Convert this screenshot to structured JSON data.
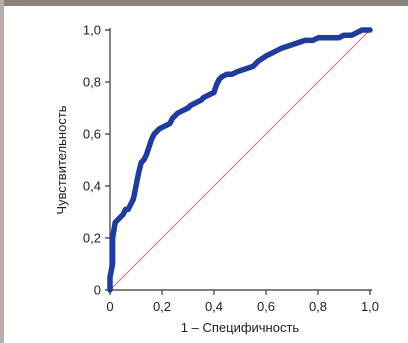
{
  "chart_data": {
    "type": "line",
    "title": "",
    "xlabel": "1 – Специфичность",
    "ylabel": "Чувствительность",
    "xlim": [
      0,
      1
    ],
    "ylim": [
      0,
      1
    ],
    "x_ticks": [
      0,
      0.2,
      0.4,
      0.6,
      0.8,
      1.0
    ],
    "x_tick_labels": [
      "0",
      "0,2",
      "0,4",
      "0,6",
      "0,8",
      "1,0"
    ],
    "y_ticks": [
      0,
      0.2,
      0.4,
      0.6,
      0.8,
      1.0
    ],
    "y_tick_labels": [
      "0",
      "0,2",
      "0,4",
      "0,6",
      "0,8",
      "1,0"
    ],
    "grid": false,
    "series": [
      {
        "style": "thick-blue",
        "color": "#1f3c9c",
        "points": [
          [
            0.0,
            0.0
          ],
          [
            0.0,
            0.05
          ],
          [
            0.01,
            0.1
          ],
          [
            0.01,
            0.2
          ],
          [
            0.02,
            0.26
          ],
          [
            0.03,
            0.27
          ],
          [
            0.04,
            0.28
          ],
          [
            0.05,
            0.29
          ],
          [
            0.06,
            0.31
          ],
          [
            0.07,
            0.31
          ],
          [
            0.08,
            0.33
          ],
          [
            0.09,
            0.35
          ],
          [
            0.1,
            0.4
          ],
          [
            0.11,
            0.45
          ],
          [
            0.12,
            0.49
          ],
          [
            0.13,
            0.5
          ],
          [
            0.14,
            0.52
          ],
          [
            0.15,
            0.55
          ],
          [
            0.16,
            0.58
          ],
          [
            0.17,
            0.6
          ],
          [
            0.18,
            0.61
          ],
          [
            0.19,
            0.62
          ],
          [
            0.21,
            0.63
          ],
          [
            0.23,
            0.64
          ],
          [
            0.24,
            0.66
          ],
          [
            0.26,
            0.68
          ],
          [
            0.28,
            0.69
          ],
          [
            0.3,
            0.7
          ],
          [
            0.31,
            0.71
          ],
          [
            0.33,
            0.72
          ],
          [
            0.35,
            0.73
          ],
          [
            0.36,
            0.74
          ],
          [
            0.38,
            0.75
          ],
          [
            0.4,
            0.76
          ],
          [
            0.41,
            0.79
          ],
          [
            0.42,
            0.81
          ],
          [
            0.43,
            0.82
          ],
          [
            0.45,
            0.83
          ],
          [
            0.47,
            0.83
          ],
          [
            0.49,
            0.84
          ],
          [
            0.52,
            0.85
          ],
          [
            0.55,
            0.86
          ],
          [
            0.57,
            0.88
          ],
          [
            0.6,
            0.9
          ],
          [
            0.62,
            0.91
          ],
          [
            0.64,
            0.92
          ],
          [
            0.66,
            0.93
          ],
          [
            0.69,
            0.94
          ],
          [
            0.72,
            0.95
          ],
          [
            0.75,
            0.96
          ],
          [
            0.78,
            0.96
          ],
          [
            0.8,
            0.97
          ],
          [
            0.84,
            0.97
          ],
          [
            0.88,
            0.97
          ],
          [
            0.9,
            0.98
          ],
          [
            0.93,
            0.98
          ],
          [
            0.95,
            0.99
          ],
          [
            0.97,
            1.0
          ],
          [
            1.0,
            1.0
          ]
        ]
      },
      {
        "style": "thin-red-reference",
        "color": "#e36b6b",
        "points": [
          [
            0,
            0
          ],
          [
            1,
            1
          ]
        ]
      }
    ],
    "axis_color": "#333333"
  }
}
